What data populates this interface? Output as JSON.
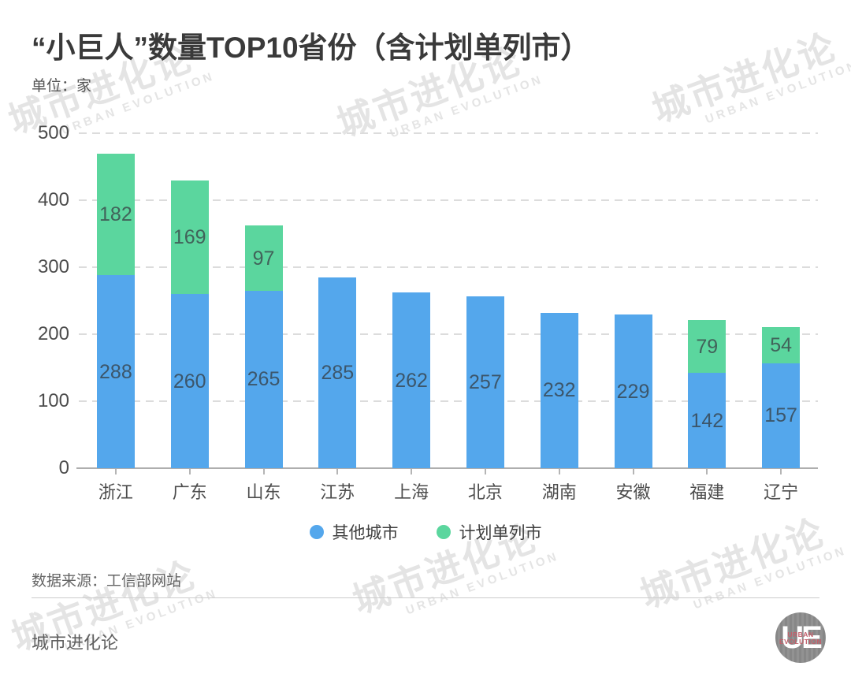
{
  "header": {
    "title": "“小巨人”数量TOP10省份（含计划单列市）",
    "unit": "单位：家"
  },
  "watermark": {
    "cn": "城市进化论",
    "en": "URBAN EVOLUTION"
  },
  "legend": {
    "items": [
      {
        "label": "其他城市",
        "color": "#54A7EC"
      },
      {
        "label": "计划单列市",
        "color": "#5BD69E"
      }
    ]
  },
  "footer": {
    "source": "数据来源：工信部网站",
    "brand": "城市进化论"
  },
  "logo": {
    "monogram": "UE",
    "line1": "URBAN",
    "line2": "EVOLUTION"
  },
  "colors": {
    "bar_blue": "#54A7EC",
    "bar_green": "#5BD69E",
    "label_on_blue": "#3C566B",
    "label_on_green": "#41635A",
    "axis_text": "#4c4c4c",
    "grid": "#dcdcdc",
    "watermark": "#e4e4e4",
    "logo_red": "#c2606b"
  },
  "chart_data": {
    "type": "bar",
    "stacked": true,
    "title": "“小巨人”数量TOP10省份（含计划单列市）",
    "unit": "单位：家",
    "categories": [
      "浙江",
      "广东",
      "山东",
      "江苏",
      "上海",
      "北京",
      "湖南",
      "安徽",
      "福建",
      "辽宁"
    ],
    "series": [
      {
        "name": "其他城市",
        "color": "#54A7EC",
        "label_color": "#3C566B",
        "values": [
          288,
          260,
          265,
          285,
          262,
          257,
          232,
          229,
          142,
          157
        ]
      },
      {
        "name": "计划单列市",
        "color": "#5BD69E",
        "label_color": "#41635A",
        "values": [
          182,
          169,
          97,
          null,
          null,
          null,
          null,
          null,
          79,
          54
        ]
      }
    ],
    "totals": [
      470,
      429,
      362,
      285,
      262,
      257,
      232,
      229,
      221,
      211
    ],
    "yticks": [
      0,
      100,
      200,
      300,
      400,
      500
    ],
    "ylim": [
      0,
      500
    ],
    "grid": "dashed-horizontal",
    "legend_position": "bottom"
  }
}
